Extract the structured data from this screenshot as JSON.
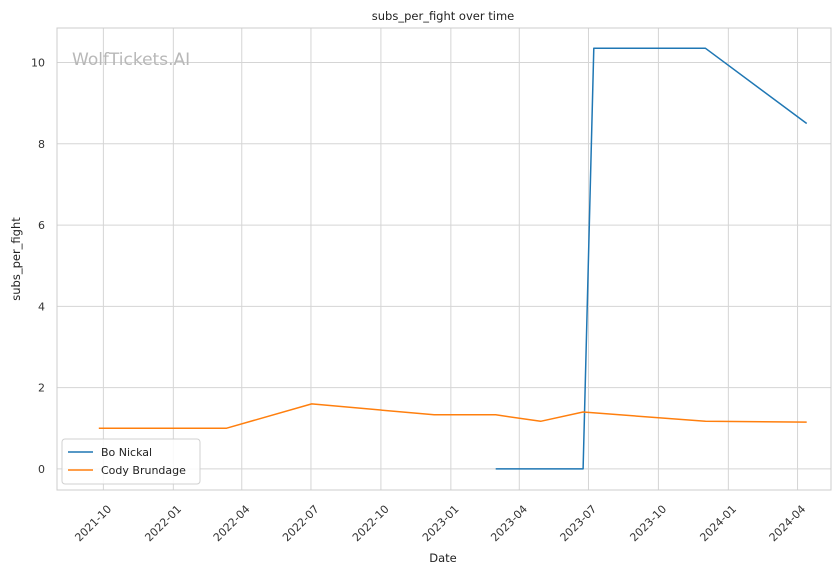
{
  "chart_data": {
    "type": "line",
    "title": "subs_per_fight over time",
    "xlabel": "Date",
    "ylabel": "subs_per_fight",
    "watermark": "WolfTickets.AI",
    "x_ticks": [
      "2021-10",
      "2022-01",
      "2022-04",
      "2022-07",
      "2022-10",
      "2023-01",
      "2023-04",
      "2023-07",
      "2023-10",
      "2024-01",
      "2024-04"
    ],
    "y_ticks": [
      0,
      2,
      4,
      6,
      8,
      10
    ],
    "xlim": [
      "2021-08-01",
      "2024-05-15"
    ],
    "ylim": [
      -0.52,
      10.85
    ],
    "grid": true,
    "legend_position": "lower-left",
    "series": [
      {
        "name": "Bo Nickal",
        "color": "#1f77b4",
        "points": [
          {
            "x": "2023-03-01",
            "y": 0.0
          },
          {
            "x": "2023-06-24",
            "y": 0.0
          },
          {
            "x": "2023-07-08",
            "y": 10.35
          },
          {
            "x": "2023-12-02",
            "y": 10.35
          },
          {
            "x": "2024-04-13",
            "y": 8.5
          }
        ]
      },
      {
        "name": "Cody Brundage",
        "color": "#ff7f0e",
        "points": [
          {
            "x": "2021-09-25",
            "y": 1.0
          },
          {
            "x": "2022-03-12",
            "y": 1.0
          },
          {
            "x": "2022-07-02",
            "y": 1.6
          },
          {
            "x": "2022-12-10",
            "y": 1.33
          },
          {
            "x": "2023-03-01",
            "y": 1.33
          },
          {
            "x": "2023-04-29",
            "y": 1.17
          },
          {
            "x": "2023-06-24",
            "y": 1.4
          },
          {
            "x": "2023-12-02",
            "y": 1.17
          },
          {
            "x": "2024-04-13",
            "y": 1.15
          }
        ]
      }
    ]
  }
}
